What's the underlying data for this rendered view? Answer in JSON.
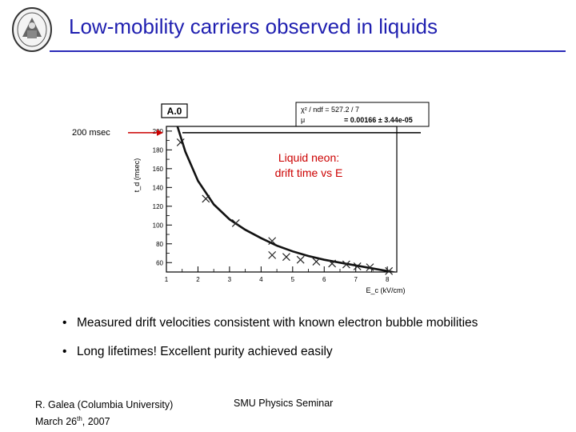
{
  "slide": {
    "title": "Low-mobility carriers observed in liquids",
    "callout": "200 msec",
    "overlay_line1": "Liquid neon:",
    "overlay_line2": "drift time vs E",
    "bullets": [
      "Measured drift velocities consistent with known electron bubble mobilities",
      "Long lifetimes! Excellent purity achieved easily"
    ],
    "footer_author": "R. Galea (Columbia University)",
    "footer_date_prefix": "March 26",
    "footer_date_sup": "th",
    "footer_date_suffix": ", 2007",
    "footer_center": "SMU Physics Seminar"
  },
  "colors": {
    "title": "#1f1fb0",
    "rule": "#2a2ab8",
    "overlay_text": "#cc0000",
    "callout_arrow": "#cc0000",
    "curve": "#111111"
  },
  "chart_data": {
    "type": "scatter",
    "title": "A.0",
    "xlabel": "E_c (kV/cm)",
    "ylabel": "t_d (msec)",
    "xlim": [
      1,
      8.3
    ],
    "ylim": [
      50,
      205
    ],
    "xticks": [
      1,
      2,
      3,
      4,
      5,
      6,
      7,
      8
    ],
    "yticks": [
      60,
      80,
      100,
      120,
      140,
      160,
      180,
      200
    ],
    "points": [
      {
        "x": 1.45,
        "y": 188
      },
      {
        "x": 2.25,
        "y": 128
      },
      {
        "x": 3.2,
        "y": 102
      },
      {
        "x": 4.35,
        "y": 83
      },
      {
        "x": 4.35,
        "y": 68
      },
      {
        "x": 4.8,
        "y": 66
      },
      {
        "x": 5.25,
        "y": 63
      },
      {
        "x": 5.75,
        "y": 61
      },
      {
        "x": 6.25,
        "y": 59
      },
      {
        "x": 6.7,
        "y": 58
      },
      {
        "x": 7.05,
        "y": 56
      },
      {
        "x": 7.45,
        "y": 55
      },
      {
        "x": 8.05,
        "y": 51
      }
    ],
    "fit": {
      "stats_line1": "χ² / ndf = 527.2 / 7",
      "stats_mu_label": "μ",
      "stats_mu_value": "= 0.00166 ± 3.44e-05",
      "curve": [
        {
          "x": 1.35,
          "y": 205
        },
        {
          "x": 1.6,
          "y": 178
        },
        {
          "x": 2.0,
          "y": 147
        },
        {
          "x": 2.5,
          "y": 122
        },
        {
          "x": 3.0,
          "y": 106
        },
        {
          "x": 3.5,
          "y": 95
        },
        {
          "x": 4.0,
          "y": 86
        },
        {
          "x": 4.5,
          "y": 78
        },
        {
          "x": 5.0,
          "y": 72
        },
        {
          "x": 5.5,
          "y": 67
        },
        {
          "x": 6.0,
          "y": 63
        },
        {
          "x": 6.5,
          "y": 60
        },
        {
          "x": 7.0,
          "y": 57
        },
        {
          "x": 7.5,
          "y": 54
        },
        {
          "x": 8.0,
          "y": 51
        },
        {
          "x": 8.3,
          "y": 49
        }
      ]
    },
    "grid": false,
    "legend": "top-right"
  }
}
